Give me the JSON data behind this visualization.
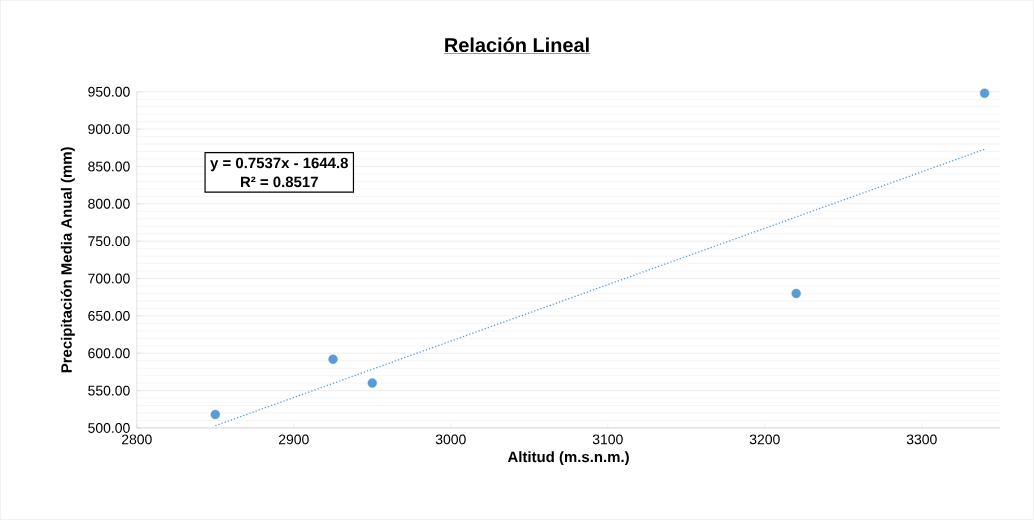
{
  "chart_data": {
    "type": "scatter",
    "title": "Relación Lineal",
    "xlabel": "Altitud (m.s.n.m.)",
    "ylabel": "Precipitación Media Anual (mm)",
    "x": [
      2850,
      2925,
      2950,
      3220,
      3340
    ],
    "series": [
      {
        "color": "#5b9bd5",
        "marker": "circle",
        "values": [
          518,
          592,
          560,
          680,
          948
        ]
      },
      {
        "type": "line",
        "color": "#5b9bd5",
        "line_style": "dotted",
        "marker": "none",
        "x": [
          2850,
          3340
        ],
        "values": [
          503,
          873
        ]
      }
    ],
    "annotations": [
      "y = 0.7537x - 1644.8",
      "R² = 0.8517"
    ],
    "xlim": [
      2800,
      3350
    ],
    "xticks": [
      2800,
      2900,
      3000,
      3100,
      3200,
      3300
    ],
    "ylim": [
      500,
      950
    ],
    "yticks": [
      {
        "value": 500,
        "label": "500.00"
      },
      {
        "value": 550,
        "label": "550.00"
      },
      {
        "value": 600,
        "label": "600.00"
      },
      {
        "value": 650,
        "label": "650.00"
      },
      {
        "value": 700,
        "label": "700.00"
      },
      {
        "value": 750,
        "label": "750.00"
      },
      {
        "value": 800,
        "label": "800.00"
      },
      {
        "value": 850,
        "label": "850.00"
      },
      {
        "value": 900,
        "label": "900.00"
      },
      {
        "value": 950,
        "label": "950.00"
      }
    ],
    "grid": "y"
  }
}
